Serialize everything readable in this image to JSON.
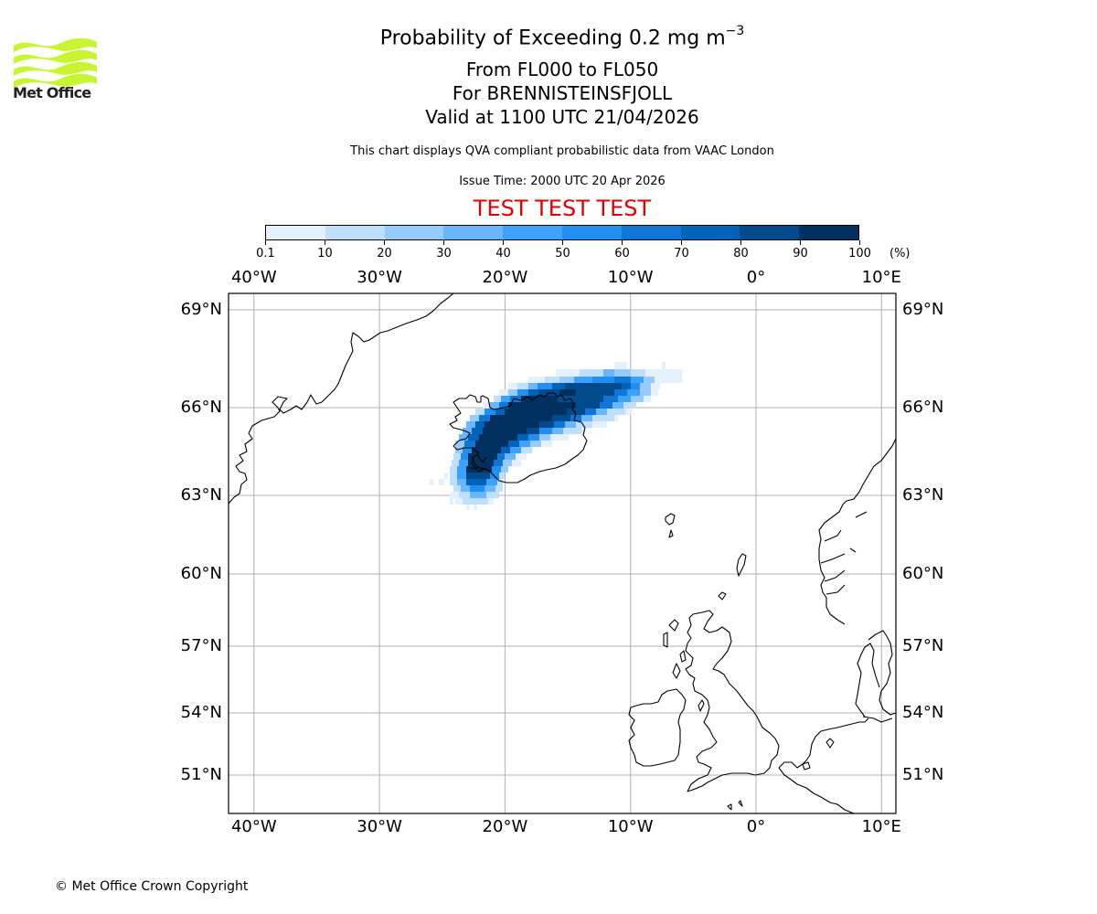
{
  "logo": {
    "text": "Met Office",
    "wave_color": "#c8f532"
  },
  "header": {
    "title_main": "Probability of Exceeding 0.2 mg m",
    "title_superscript": "−3",
    "flight_levels": "From FL000 to FL050",
    "volcano": "For BRENNISTEINSFJOLL",
    "valid_time": "Valid at 1100 UTC 21/04/2026",
    "disclaimer": "This chart displays QVA compliant probabilistic data from VAAC London",
    "issue_time": "Issue Time: 2000 UTC 20 Apr 2026",
    "test_banner": "TEST TEST TEST",
    "test_banner_color": "#e00000"
  },
  "colorbar": {
    "ticks": [
      "0.1",
      "10",
      "20",
      "30",
      "40",
      "50",
      "60",
      "70",
      "80",
      "90",
      "100"
    ],
    "unit": "(%)",
    "colors": [
      "#e3f1fe",
      "#bfe0fd",
      "#97cbfd",
      "#6ab6fc",
      "#3ea2fd",
      "#218ef2",
      "#0f76d8",
      "#0062b8",
      "#014b8c",
      "#003060"
    ]
  },
  "map": {
    "lon_labels": [
      "40°W",
      "30°W",
      "20°W",
      "10°W",
      "0°",
      "10°E"
    ],
    "lat_labels": [
      "69°N",
      "66°N",
      "63°N",
      "60°N",
      "57°N",
      "54°N",
      "51°N"
    ],
    "gridline_color": "#b0b0b0",
    "coastline_color": "#000000"
  },
  "footer": {
    "copyright": "© Met Office Crown Copyright"
  }
}
